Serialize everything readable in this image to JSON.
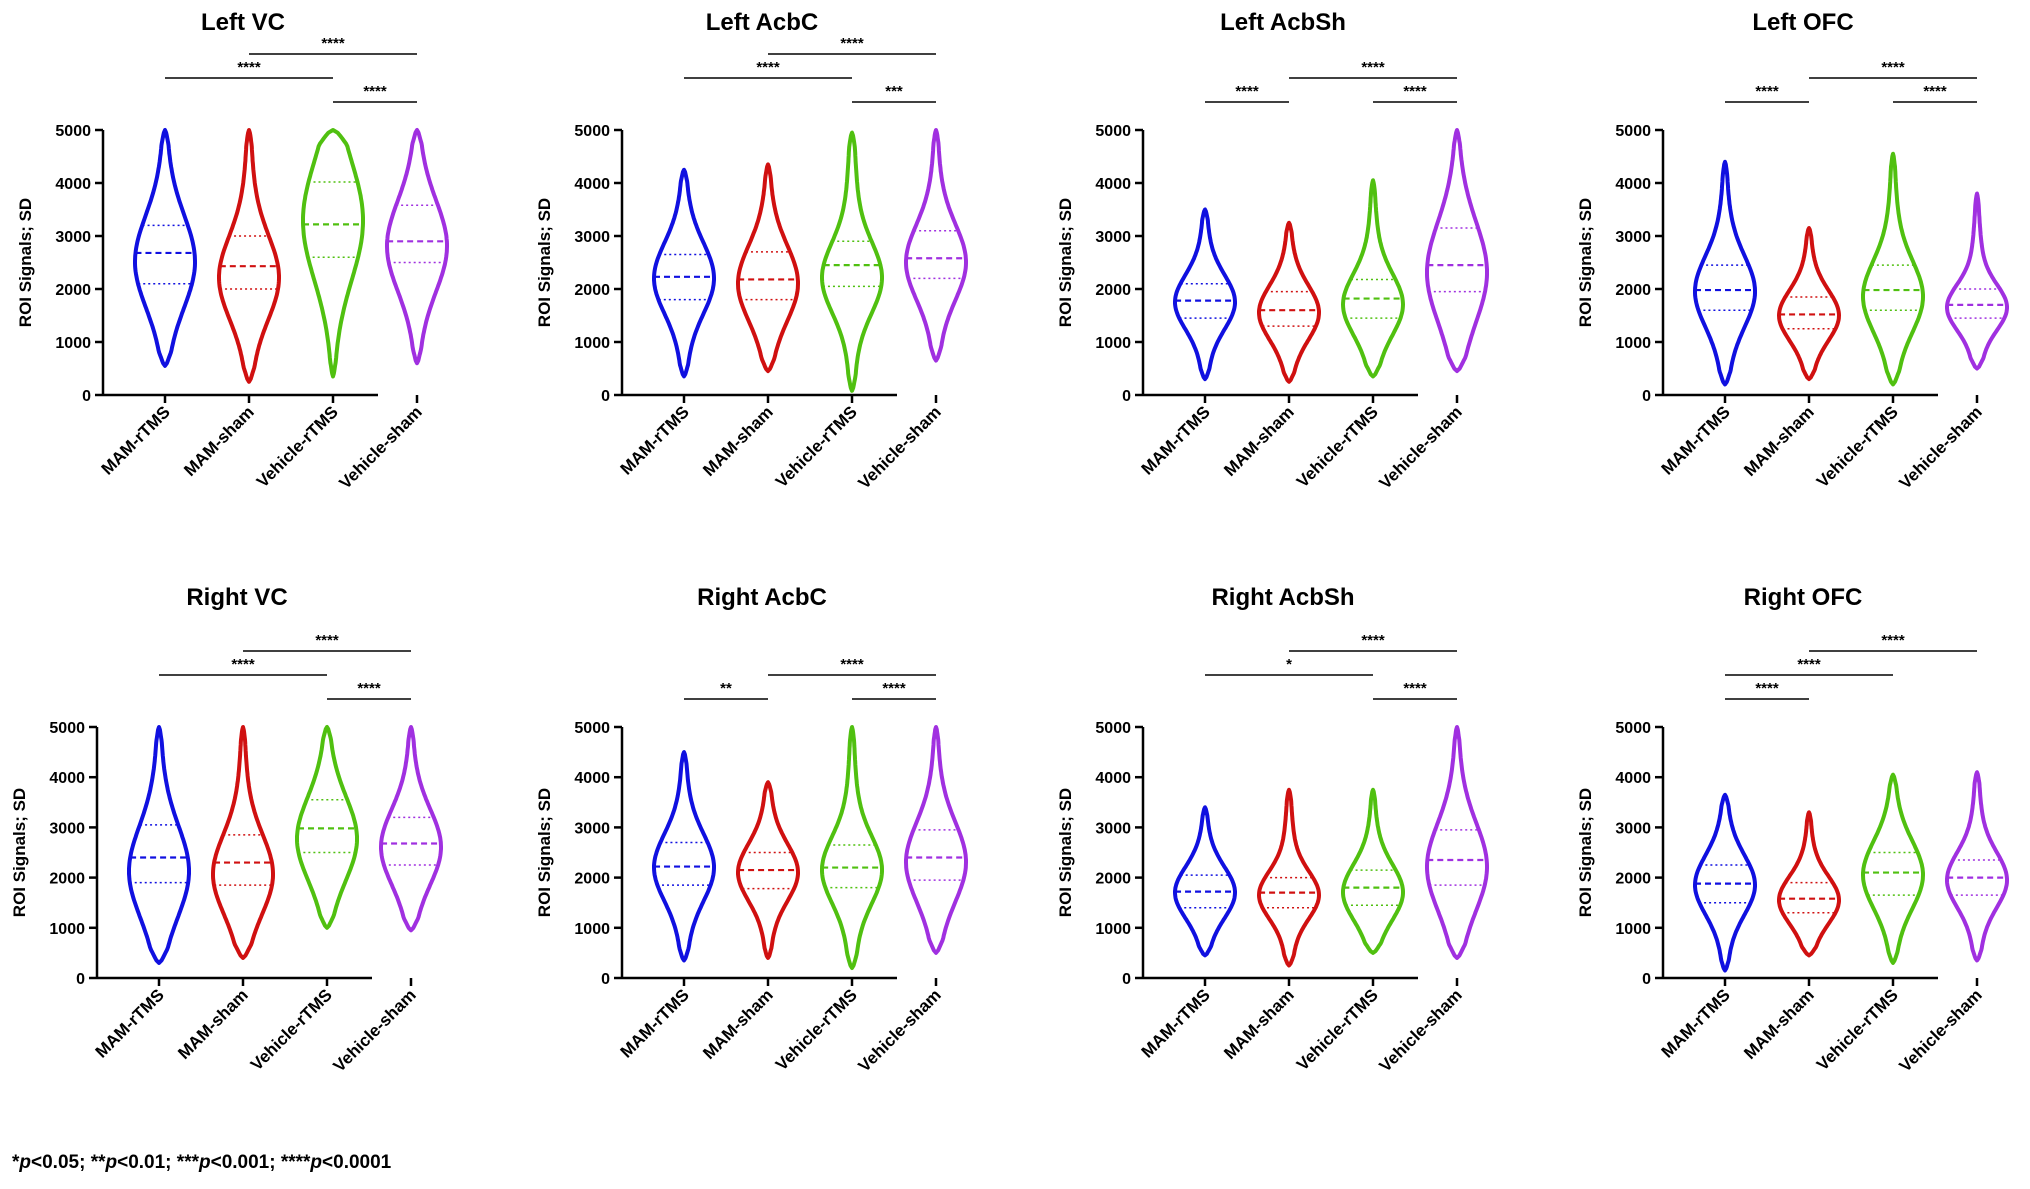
{
  "chart_data": [
    {
      "type": "violin",
      "title": "Left VC",
      "ylabel": "ROI Signals; SD",
      "ylim": [
        0,
        5000
      ],
      "yticks": [
        0,
        1000,
        2000,
        3000,
        4000,
        5000
      ],
      "categories": [
        "MAM-rTMS",
        "MAM-sham",
        "Vehicle-rTMS",
        "Vehicle-sham"
      ],
      "groups": [
        {
          "color": "#1010e0",
          "min": 550,
          "max": 5000,
          "q1": 2100,
          "median": 2680,
          "q3": 3200,
          "mode": 2500
        },
        {
          "color": "#d01010",
          "min": 250,
          "max": 5000,
          "q1": 2000,
          "median": 2430,
          "q3": 3000,
          "mode": 2200
        },
        {
          "color": "#50c010",
          "min": 350,
          "max": 5000,
          "q1": 2600,
          "median": 3220,
          "q3": 4020,
          "mode": 3300
        },
        {
          "color": "#a030e0",
          "min": 600,
          "max": 5000,
          "q1": 2500,
          "median": 2900,
          "q3": 3580,
          "mode": 2800
        }
      ],
      "significance": [
        {
          "from": 0,
          "to": 2,
          "label": "****"
        },
        {
          "from": 1,
          "to": 3,
          "label": "****"
        },
        {
          "from": 2,
          "to": 3,
          "label": "****"
        }
      ]
    },
    {
      "type": "violin",
      "title": "Left AcbC",
      "ylabel": "ROI Signals; SD",
      "ylim": [
        0,
        5000
      ],
      "yticks": [
        0,
        1000,
        2000,
        3000,
        4000,
        5000
      ],
      "categories": [
        "MAM-rTMS",
        "MAM-sham",
        "Vehicle-rTMS",
        "Vehicle-sham"
      ],
      "groups": [
        {
          "color": "#1010e0",
          "min": 350,
          "max": 4250,
          "q1": 1800,
          "median": 2230,
          "q3": 2650,
          "mode": 2200
        },
        {
          "color": "#d01010",
          "min": 450,
          "max": 4350,
          "q1": 1800,
          "median": 2180,
          "q3": 2700,
          "mode": 2100
        },
        {
          "color": "#50c010",
          "min": 80,
          "max": 4950,
          "q1": 2050,
          "median": 2450,
          "q3": 2900,
          "mode": 2200
        },
        {
          "color": "#a030e0",
          "min": 650,
          "max": 5000,
          "q1": 2200,
          "median": 2580,
          "q3": 3100,
          "mode": 2500
        }
      ],
      "significance": [
        {
          "from": 0,
          "to": 2,
          "label": "****"
        },
        {
          "from": 1,
          "to": 3,
          "label": "****"
        },
        {
          "from": 2,
          "to": 3,
          "label": "***"
        }
      ]
    },
    {
      "type": "violin",
      "title": "Left AcbSh",
      "ylabel": "ROI Signals; SD",
      "ylim": [
        0,
        5000
      ],
      "yticks": [
        0,
        1000,
        2000,
        3000,
        4000,
        5000
      ],
      "categories": [
        "MAM-rTMS",
        "MAM-sham",
        "Vehicle-rTMS",
        "Vehicle-sham"
      ],
      "groups": [
        {
          "color": "#1010e0",
          "min": 300,
          "max": 3500,
          "q1": 1450,
          "median": 1780,
          "q3": 2100,
          "mode": 1750
        },
        {
          "color": "#d01010",
          "min": 250,
          "max": 3250,
          "q1": 1300,
          "median": 1600,
          "q3": 1950,
          "mode": 1550
        },
        {
          "color": "#50c010",
          "min": 350,
          "max": 4050,
          "q1": 1450,
          "median": 1820,
          "q3": 2180,
          "mode": 1700
        },
        {
          "color": "#a030e0",
          "min": 450,
          "max": 5000,
          "q1": 1950,
          "median": 2450,
          "q3": 3150,
          "mode": 2300
        }
      ],
      "significance": [
        {
          "from": 0,
          "to": 1,
          "label": "****"
        },
        {
          "from": 1,
          "to": 3,
          "label": "****"
        },
        {
          "from": 2,
          "to": 3,
          "label": "****"
        }
      ]
    },
    {
      "type": "violin",
      "title": "Left OFC",
      "ylabel": "ROI Signals; SD",
      "ylim": [
        0,
        5000
      ],
      "yticks": [
        0,
        1000,
        2000,
        3000,
        4000,
        5000
      ],
      "categories": [
        "MAM-rTMS",
        "MAM-sham",
        "Vehicle-rTMS",
        "Vehicle-sham"
      ],
      "groups": [
        {
          "color": "#1010e0",
          "min": 200,
          "max": 4400,
          "q1": 1600,
          "median": 1980,
          "q3": 2450,
          "mode": 1950
        },
        {
          "color": "#d01010",
          "min": 300,
          "max": 3150,
          "q1": 1250,
          "median": 1520,
          "q3": 1850,
          "mode": 1500
        },
        {
          "color": "#50c010",
          "min": 200,
          "max": 4550,
          "q1": 1600,
          "median": 1980,
          "q3": 2450,
          "mode": 1850
        },
        {
          "color": "#a030e0",
          "min": 500,
          "max": 3800,
          "q1": 1450,
          "median": 1700,
          "q3": 2000,
          "mode": 1650
        }
      ],
      "significance": [
        {
          "from": 0,
          "to": 1,
          "label": "****"
        },
        {
          "from": 1,
          "to": 3,
          "label": "****"
        },
        {
          "from": 2,
          "to": 3,
          "label": "****"
        }
      ]
    },
    {
      "type": "violin",
      "title": "Right VC",
      "ylabel": "ROI Signals; SD",
      "ylim": [
        0,
        5000
      ],
      "yticks": [
        0,
        1000,
        2000,
        3000,
        4000,
        5000
      ],
      "categories": [
        "MAM-rTMS",
        "MAM-sham",
        "Vehicle-rTMS",
        "Vehicle-sham"
      ],
      "groups": [
        {
          "color": "#1010e0",
          "min": 300,
          "max": 5000,
          "q1": 1900,
          "median": 2400,
          "q3": 3050,
          "mode": 2100
        },
        {
          "color": "#d01010",
          "min": 400,
          "max": 5000,
          "q1": 1850,
          "median": 2300,
          "q3": 2850,
          "mode": 2050
        },
        {
          "color": "#50c010",
          "min": 1000,
          "max": 5000,
          "q1": 2500,
          "median": 2980,
          "q3": 3550,
          "mode": 2750
        },
        {
          "color": "#a030e0",
          "min": 950,
          "max": 5000,
          "q1": 2250,
          "median": 2680,
          "q3": 3200,
          "mode": 2600
        }
      ],
      "significance": [
        {
          "from": 0,
          "to": 2,
          "label": "****"
        },
        {
          "from": 1,
          "to": 3,
          "label": "****"
        },
        {
          "from": 2,
          "to": 3,
          "label": "****"
        }
      ]
    },
    {
      "type": "violin",
      "title": "Right AcbC",
      "ylabel": "ROI Signals; SD",
      "ylim": [
        0,
        5000
      ],
      "yticks": [
        0,
        1000,
        2000,
        3000,
        4000,
        5000
      ],
      "categories": [
        "MAM-rTMS",
        "MAM-sham",
        "Vehicle-rTMS",
        "Vehicle-sham"
      ],
      "groups": [
        {
          "color": "#1010e0",
          "min": 350,
          "max": 4500,
          "q1": 1850,
          "median": 2220,
          "q3": 2700,
          "mode": 2200
        },
        {
          "color": "#d01010",
          "min": 400,
          "max": 3900,
          "q1": 1780,
          "median": 2150,
          "q3": 2500,
          "mode": 2100
        },
        {
          "color": "#50c010",
          "min": 200,
          "max": 5000,
          "q1": 1800,
          "median": 2200,
          "q3": 2650,
          "mode": 2150
        },
        {
          "color": "#a030e0",
          "min": 500,
          "max": 5000,
          "q1": 1950,
          "median": 2400,
          "q3": 2950,
          "mode": 2300
        }
      ],
      "significance": [
        {
          "from": 0,
          "to": 1,
          "label": "**"
        },
        {
          "from": 1,
          "to": 3,
          "label": "****"
        },
        {
          "from": 2,
          "to": 3,
          "label": "****"
        }
      ]
    },
    {
      "type": "violin",
      "title": "Right AcbSh",
      "ylabel": "ROI Signals; SD",
      "ylim": [
        0,
        5000
      ],
      "yticks": [
        0,
        1000,
        2000,
        3000,
        4000,
        5000
      ],
      "categories": [
        "MAM-rTMS",
        "MAM-sham",
        "Vehicle-rTMS",
        "Vehicle-sham"
      ],
      "groups": [
        {
          "color": "#1010e0",
          "min": 450,
          "max": 3400,
          "q1": 1400,
          "median": 1720,
          "q3": 2050,
          "mode": 1700
        },
        {
          "color": "#d01010",
          "min": 250,
          "max": 3750,
          "q1": 1400,
          "median": 1700,
          "q3": 2000,
          "mode": 1650
        },
        {
          "color": "#50c010",
          "min": 500,
          "max": 3750,
          "q1": 1450,
          "median": 1800,
          "q3": 2150,
          "mode": 1700
        },
        {
          "color": "#a030e0",
          "min": 400,
          "max": 5000,
          "q1": 1850,
          "median": 2350,
          "q3": 2950,
          "mode": 2200
        }
      ],
      "significance": [
        {
          "from": 0,
          "to": 2,
          "label": "*"
        },
        {
          "from": 1,
          "to": 3,
          "label": "****"
        },
        {
          "from": 2,
          "to": 3,
          "label": "****"
        }
      ]
    },
    {
      "type": "violin",
      "title": "Right OFC",
      "ylabel": "ROI Signals; SD",
      "ylim": [
        0,
        5000
      ],
      "yticks": [
        0,
        1000,
        2000,
        3000,
        4000,
        5000
      ],
      "categories": [
        "MAM-rTMS",
        "MAM-sham",
        "Vehicle-rTMS",
        "Vehicle-sham"
      ],
      "groups": [
        {
          "color": "#1010e0",
          "min": 150,
          "max": 3650,
          "q1": 1500,
          "median": 1880,
          "q3": 2250,
          "mode": 1850
        },
        {
          "color": "#d01010",
          "min": 450,
          "max": 3300,
          "q1": 1300,
          "median": 1580,
          "q3": 1900,
          "mode": 1550
        },
        {
          "color": "#50c010",
          "min": 300,
          "max": 4050,
          "q1": 1650,
          "median": 2100,
          "q3": 2500,
          "mode": 2050
        },
        {
          "color": "#a030e0",
          "min": 350,
          "max": 4100,
          "q1": 1650,
          "median": 2000,
          "q3": 2350,
          "mode": 1950
        }
      ],
      "significance": [
        {
          "from": 0,
          "to": 1,
          "label": "****"
        },
        {
          "from": 0,
          "to": 2,
          "label": "****"
        },
        {
          "from": 1,
          "to": 3,
          "label": "****"
        }
      ]
    }
  ],
  "footnote": {
    "text": "*p<0.05; **p<0.01; ***p<0.001; ****p<0.0001",
    "parts": [
      {
        "prefix": "*",
        "p": "p",
        "rest": "<0.05; "
      },
      {
        "prefix": "**",
        "p": "p",
        "rest": "<0.01; "
      },
      {
        "prefix": "***",
        "p": "p",
        "rest": "<0.001; "
      },
      {
        "prefix": "****",
        "p": "p",
        "rest": "<0.0001"
      }
    ]
  }
}
